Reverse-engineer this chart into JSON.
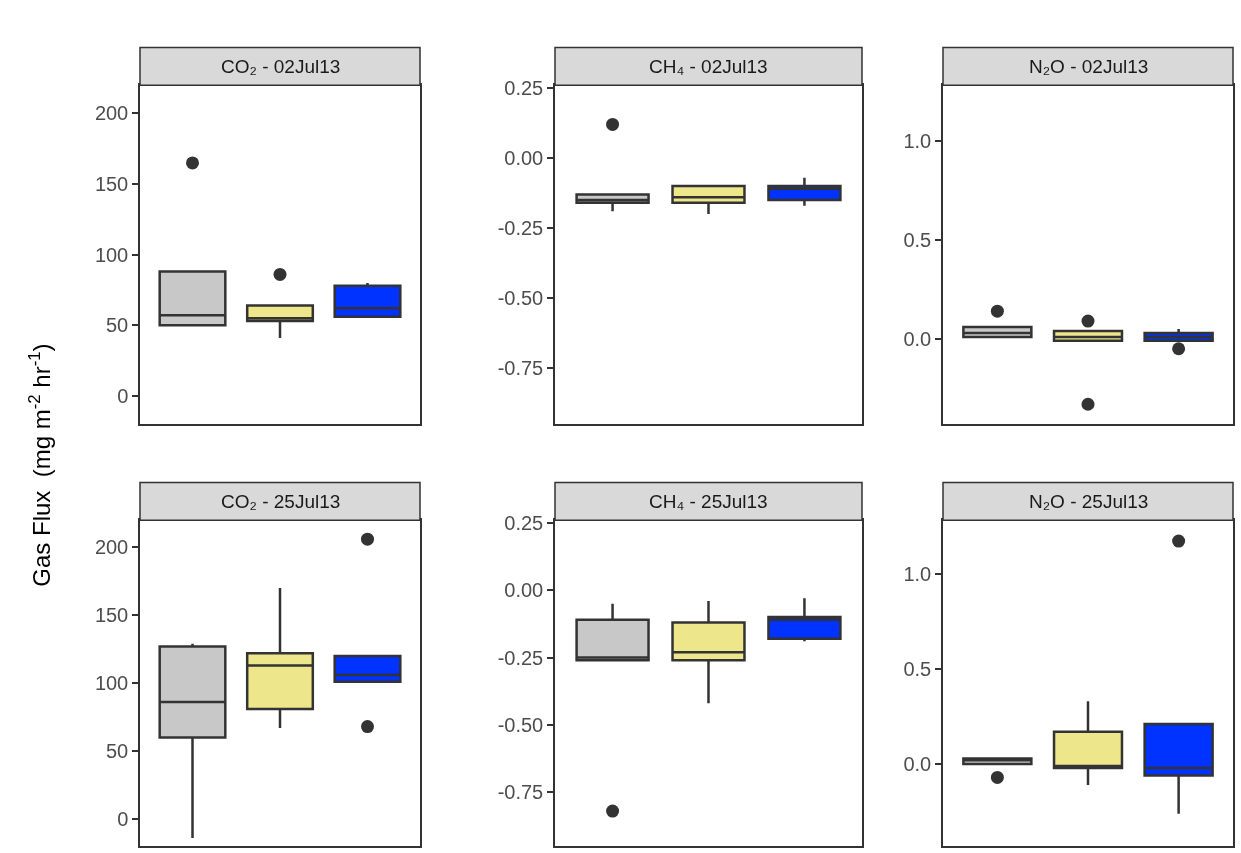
{
  "chart_data": [
    {
      "type": "box",
      "title": "CO₂ - 02Jul13",
      "ylabel": "Gas Flux  (mg m$^{-2}$ hr$^{-1}$)",
      "categories": [
        null,
        null,
        null
      ],
      "colors": [
        "#c8c8c8",
        "#eee68b",
        "#0033ff"
      ],
      "ylim": [
        -20,
        220
      ],
      "yticks": [
        0,
        50,
        100,
        150,
        200
      ],
      "tick_labels": "y",
      "boxes": [
        {
          "low": 50,
          "q1": 50,
          "median": 57,
          "q3": 88,
          "high": 88,
          "outliers": [
            165
          ]
        },
        {
          "low": 41,
          "q1": 53,
          "median": 55,
          "q3": 64,
          "high": 64,
          "outliers": [
            86
          ]
        },
        {
          "low": 56,
          "q1": 56,
          "median": 62,
          "q3": 78,
          "high": 80
        }
      ]
    },
    {
      "type": "box",
      "title": "CH₄ - 02Jul13",
      "categories": [
        null,
        null,
        null
      ],
      "colors": [
        "#c8c8c8",
        "#eee68b",
        "#0033ff"
      ],
      "ylim": [
        -0.95,
        0.26
      ],
      "yticks": [
        {
          "value": 0.25,
          "label": "0.25"
        },
        {
          "value": 0,
          "label": "0.00"
        },
        {
          "value": -0.25,
          "label": "-0.25"
        },
        {
          "value": -0.5,
          "label": "-0.50"
        },
        {
          "value": -0.75,
          "label": "-0.75"
        }
      ],
      "tick_labels": "y",
      "boxes": [
        {
          "low": -0.19,
          "q1": -0.16,
          "median": -0.15,
          "q3": -0.13,
          "high": -0.13,
          "outliers": [
            0.12
          ]
        },
        {
          "low": -0.2,
          "q1": -0.16,
          "median": -0.14,
          "q3": -0.1,
          "high": -0.1
        },
        {
          "low": -0.17,
          "q1": -0.15,
          "median": -0.11,
          "q3": -0.1,
          "high": -0.07
        }
      ]
    },
    {
      "type": "box",
      "title": "N₂O - 02Jul13",
      "categories": [
        null,
        null,
        null
      ],
      "colors": [
        "#c8c8c8",
        "#eee68b",
        "#0033ff"
      ],
      "ylim": [
        -0.43,
        1.28
      ],
      "yticks": [
        {
          "value": 0,
          "label": "0.0"
        },
        {
          "value": 0.5,
          "label": "0.5"
        },
        {
          "value": 1,
          "label": "1.0"
        }
      ],
      "tick_labels": "y",
      "boxes": [
        {
          "low": 0.01,
          "q1": 0.01,
          "median": 0.03,
          "q3": 0.06,
          "high": 0.06,
          "outliers": [
            0.14
          ]
        },
        {
          "low": -0.01,
          "q1": -0.01,
          "median": 0.01,
          "q3": 0.04,
          "high": 0.04,
          "outliers": [
            0.09,
            -0.33
          ]
        },
        {
          "low": -0.01,
          "q1": -0.01,
          "median": 0.01,
          "q3": 0.03,
          "high": 0.05,
          "outliers": [
            -0.05
          ]
        }
      ]
    },
    {
      "type": "box",
      "title": "CO₂ - 25Jul13",
      "categories": [
        null,
        null,
        null
      ],
      "colors": [
        "#c8c8c8",
        "#eee68b",
        "#0033ff"
      ],
      "ylim": [
        -20,
        220
      ],
      "yticks": [
        0,
        50,
        100,
        150,
        200
      ],
      "tick_labels": "y",
      "boxes": [
        {
          "low": -14,
          "q1": 60,
          "median": 86,
          "q3": 127,
          "high": 129
        },
        {
          "low": 67,
          "q1": 81,
          "median": 113,
          "q3": 122,
          "high": 170
        },
        {
          "low": 101,
          "q1": 101,
          "median": 106,
          "q3": 120,
          "high": 120,
          "outliers": [
            206,
            68
          ]
        }
      ]
    },
    {
      "type": "box",
      "title": "CH₄ - 25Jul13",
      "categories": [
        null,
        null,
        null
      ],
      "colors": [
        "#c8c8c8",
        "#eee68b",
        "#0033ff"
      ],
      "ylim": [
        -0.95,
        0.26
      ],
      "yticks": [
        {
          "value": 0.25,
          "label": "0.25"
        },
        {
          "value": 0,
          "label": "0.00"
        },
        {
          "value": -0.25,
          "label": "-0.25"
        },
        {
          "value": -0.5,
          "label": "-0.50"
        },
        {
          "value": -0.75,
          "label": "-0.75"
        }
      ],
      "tick_labels": "y",
      "boxes": [
        {
          "low": -0.26,
          "q1": -0.26,
          "median": -0.25,
          "q3": -0.11,
          "high": -0.05,
          "outliers": [
            -0.82
          ]
        },
        {
          "low": -0.42,
          "q1": -0.26,
          "median": -0.23,
          "q3": -0.12,
          "high": -0.04
        },
        {
          "low": -0.19,
          "q1": -0.18,
          "median": -0.11,
          "q3": -0.1,
          "high": -0.03
        }
      ]
    },
    {
      "type": "box",
      "title": "N₂O - 25Jul13",
      "categories": [
        null,
        null,
        null
      ],
      "colors": [
        "#c8c8c8",
        "#eee68b",
        "#0033ff"
      ],
      "ylim": [
        -0.43,
        1.28
      ],
      "yticks": [
        {
          "value": 0,
          "label": "0.0"
        },
        {
          "value": 0.5,
          "label": "0.5"
        },
        {
          "value": 1,
          "label": "1.0"
        }
      ],
      "tick_labels": "y",
      "boxes": [
        {
          "low": 0.0,
          "q1": 0.0,
          "median": 0.02,
          "q3": 0.03,
          "high": 0.03,
          "outliers": [
            -0.07
          ]
        },
        {
          "low": -0.11,
          "q1": -0.02,
          "median": -0.01,
          "q3": 0.17,
          "high": 0.33
        },
        {
          "low": -0.26,
          "q1": -0.06,
          "median": -0.02,
          "q3": 0.21,
          "high": 0.21,
          "outliers": [
            1.17
          ]
        }
      ]
    }
  ]
}
